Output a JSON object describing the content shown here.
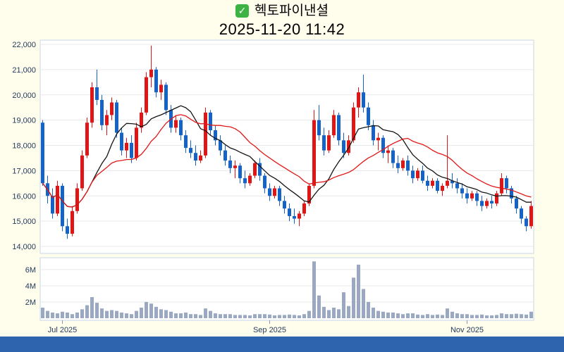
{
  "header": {
    "checkmark": "✓",
    "title": "헥토파이낸셜",
    "datetime": "2025-11-20 11:42"
  },
  "colors": {
    "background": "#FFFDEC",
    "up": "#E01616",
    "down": "#1663C7",
    "ma_fast": "#141414",
    "ma_slow": "#E01818",
    "volume_bar": "#9AA8C2",
    "grid": "#E9E9E9",
    "plot_border": "#C8D6EA",
    "axis_text": "#233A5C",
    "tick_mark": "#8A97AB",
    "footer_bar": "#2E63AE",
    "checkbox_green": "#3DB344"
  },
  "chart_data": {
    "type": "candlestick_with_volume",
    "title": "헥토파이낸셜",
    "datetime": "2025-11-20 11:42",
    "grid": true,
    "y_axis": {
      "min": 14000,
      "max": 22000,
      "step": 1000,
      "tick_labels": [
        "22,000",
        "21,000",
        "20,000",
        "19,000",
        "18,000",
        "17,000",
        "16,000",
        "15,000",
        "14,000"
      ]
    },
    "volume_axis": {
      "max_millions": 7.2,
      "tick_labels": [
        "6M",
        "4M",
        "2M"
      ],
      "tick_values_millions": [
        6,
        4,
        2
      ]
    },
    "x_axis": {
      "ticks": [
        {
          "label": "Jul 2025",
          "index": 4
        },
        {
          "label": "Sep 2025",
          "index": 46
        },
        {
          "label": "Nov 2025",
          "index": 86
        }
      ]
    },
    "moving_averages": [
      {
        "name": "fast-ma",
        "window": 10,
        "color": "#141414"
      },
      {
        "name": "slow-ma",
        "window": 20,
        "color": "#E01818"
      }
    ],
    "candle_format": [
      "open",
      "high",
      "low",
      "close",
      "volume_millions"
    ],
    "candles": [
      [
        18900,
        19000,
        16400,
        16500,
        1.3
      ],
      [
        16500,
        16800,
        15700,
        16000,
        0.9
      ],
      [
        16000,
        16300,
        15100,
        15300,
        0.7
      ],
      [
        15300,
        16600,
        15200,
        16400,
        0.6
      ],
      [
        16400,
        16500,
        14600,
        14800,
        0.8
      ],
      [
        14800,
        15100,
        14300,
        14500,
        0.7
      ],
      [
        14500,
        15600,
        14400,
        15400,
        0.5
      ],
      [
        15400,
        16500,
        15300,
        16300,
        0.7
      ],
      [
        16300,
        17800,
        16200,
        17600,
        1.1
      ],
      [
        17600,
        19100,
        17500,
        18900,
        1.6
      ],
      [
        18900,
        20500,
        18700,
        20300,
        2.6
      ],
      [
        20300,
        21000,
        19600,
        19800,
        1.9
      ],
      [
        19800,
        20000,
        18600,
        18800,
        1.2
      ],
      [
        18800,
        19400,
        18400,
        19200,
        0.9
      ],
      [
        19200,
        19900,
        19000,
        19700,
        1.0
      ],
      [
        19700,
        19800,
        18300,
        18500,
        0.9
      ],
      [
        18500,
        18700,
        17600,
        17800,
        0.7
      ],
      [
        17800,
        18300,
        17500,
        18100,
        0.6
      ],
      [
        18100,
        18400,
        17300,
        17500,
        0.5
      ],
      [
        17500,
        18900,
        17400,
        18700,
        0.9
      ],
      [
        18700,
        19500,
        18500,
        19300,
        1.3
      ],
      [
        19300,
        20900,
        19200,
        20700,
        2.0
      ],
      [
        20700,
        21950,
        20300,
        21000,
        1.8
      ],
      [
        21000,
        21100,
        19900,
        20100,
        1.4
      ],
      [
        20100,
        20600,
        19800,
        20400,
        1.1
      ],
      [
        20400,
        20500,
        19200,
        19400,
        1.0
      ],
      [
        19400,
        19600,
        18500,
        18700,
        0.8
      ],
      [
        18700,
        19200,
        18500,
        19000,
        0.6
      ],
      [
        19000,
        19100,
        18200,
        18400,
        0.6
      ],
      [
        18400,
        18600,
        17700,
        17900,
        0.7
      ],
      [
        17900,
        18200,
        17500,
        17700,
        0.5
      ],
      [
        17700,
        18000,
        17200,
        17400,
        0.5
      ],
      [
        17400,
        17800,
        17300,
        17600,
        0.4
      ],
      [
        17600,
        19500,
        17500,
        19300,
        1.2
      ],
      [
        19300,
        19400,
        18400,
        18600,
        0.9
      ],
      [
        18600,
        18800,
        18000,
        18200,
        0.6
      ],
      [
        18200,
        18400,
        17600,
        17800,
        0.5
      ],
      [
        17800,
        18000,
        17200,
        17400,
        0.5
      ],
      [
        17400,
        17600,
        16900,
        17100,
        0.5
      ],
      [
        17100,
        17400,
        16700,
        17200,
        0.4
      ],
      [
        17200,
        17300,
        16500,
        16700,
        0.4
      ],
      [
        16700,
        17000,
        16300,
        16500,
        0.4
      ],
      [
        16500,
        16900,
        16400,
        16800,
        0.35
      ],
      [
        16800,
        17400,
        16700,
        17300,
        0.5
      ],
      [
        17300,
        17500,
        16600,
        16800,
        0.5
      ],
      [
        16800,
        16900,
        16100,
        16300,
        0.5
      ],
      [
        16300,
        16500,
        15800,
        16000,
        0.45
      ],
      [
        16000,
        16400,
        15900,
        16300,
        0.35
      ],
      [
        16300,
        16400,
        15600,
        15800,
        0.4
      ],
      [
        15800,
        16000,
        15300,
        15500,
        0.4
      ],
      [
        15500,
        15700,
        15000,
        15200,
        0.45
      ],
      [
        15200,
        15500,
        14900,
        15100,
        0.4
      ],
      [
        15100,
        15400,
        14800,
        15300,
        0.35
      ],
      [
        15300,
        15800,
        15200,
        15700,
        0.5
      ],
      [
        15700,
        16500,
        15600,
        16400,
        0.9
      ],
      [
        16400,
        19400,
        16300,
        19000,
        7.0
      ],
      [
        19000,
        19600,
        18200,
        18400,
        2.8
      ],
      [
        18400,
        18700,
        17600,
        17800,
        1.4
      ],
      [
        17800,
        18600,
        17700,
        18400,
        1.0
      ],
      [
        18400,
        19400,
        18300,
        19200,
        1.3
      ],
      [
        19200,
        19300,
        18000,
        18200,
        1.1
      ],
      [
        18200,
        18500,
        17500,
        17700,
        3.2
      ],
      [
        17700,
        18400,
        17600,
        18200,
        1.5
      ],
      [
        18200,
        19700,
        18100,
        19500,
        5.0
      ],
      [
        19500,
        20300,
        19100,
        20100,
        6.6
      ],
      [
        20100,
        20800,
        19300,
        19500,
        3.6
      ],
      [
        19500,
        19700,
        18600,
        18800,
        2.0
      ],
      [
        18800,
        19000,
        18000,
        18200,
        1.3
      ],
      [
        18200,
        18500,
        17800,
        18300,
        0.9
      ],
      [
        18300,
        18400,
        17500,
        17700,
        0.8
      ],
      [
        17700,
        18000,
        17300,
        17800,
        0.7
      ],
      [
        17800,
        17900,
        17100,
        17300,
        0.7
      ],
      [
        17300,
        17600,
        16900,
        17100,
        0.6
      ],
      [
        17100,
        17500,
        17000,
        17400,
        0.5
      ],
      [
        17400,
        17600,
        16800,
        17000,
        0.6
      ],
      [
        17000,
        17200,
        16500,
        16700,
        0.6
      ],
      [
        16700,
        17100,
        16600,
        17000,
        0.45
      ],
      [
        17000,
        17200,
        16500,
        16600,
        0.4
      ],
      [
        16600,
        16800,
        16200,
        16400,
        0.5
      ],
      [
        16400,
        16700,
        16300,
        16600,
        0.4
      ],
      [
        16600,
        16700,
        16100,
        16200,
        0.45
      ],
      [
        16200,
        16500,
        16000,
        16400,
        0.4
      ],
      [
        16400,
        18400,
        16300,
        16600,
        1.2
      ],
      [
        16600,
        16900,
        16300,
        16500,
        0.8
      ],
      [
        16500,
        16700,
        16100,
        16300,
        0.6
      ],
      [
        16300,
        16500,
        15900,
        16100,
        0.5
      ],
      [
        16100,
        16300,
        15700,
        15900,
        0.5
      ],
      [
        15900,
        16200,
        15800,
        16100,
        0.4
      ],
      [
        16100,
        16200,
        15600,
        15800,
        0.4
      ],
      [
        15800,
        16000,
        15400,
        15600,
        0.45
      ],
      [
        15600,
        15900,
        15500,
        15800,
        0.35
      ],
      [
        15800,
        16000,
        15500,
        15700,
        0.35
      ],
      [
        15700,
        16200,
        15600,
        16100,
        0.4
      ],
      [
        16100,
        16900,
        16000,
        16700,
        0.6
      ],
      [
        16700,
        16800,
        16100,
        16300,
        0.5
      ],
      [
        16300,
        16400,
        15700,
        15900,
        0.5
      ],
      [
        15900,
        16000,
        15300,
        15500,
        0.55
      ],
      [
        15500,
        15600,
        14900,
        15100,
        0.5
      ],
      [
        15100,
        15200,
        14600,
        14800,
        0.45
      ],
      [
        14800,
        15800,
        14700,
        15600,
        0.8
      ]
    ]
  }
}
